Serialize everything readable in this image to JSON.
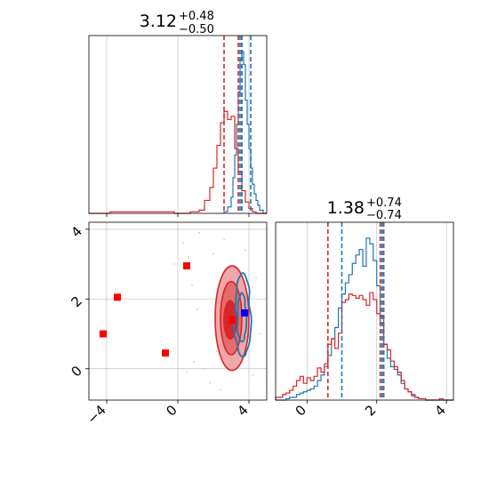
{
  "chart_data": {
    "type": "corner",
    "parameters": [
      {
        "title": {
          "value": "3.12",
          "plus": "+0.48",
          "minus": "−0.50"
        },
        "quantile_lines": {
          "red": [
            2.6,
            3.4,
            3.6
          ],
          "blue": [
            3.5,
            3.6,
            4.1
          ]
        },
        "hist_range": [
          -5.0,
          5.0
        ],
        "hist_red": {
          "edges": [
            -5.0,
            -3.8,
            -0.2,
            0.7,
            1.2,
            1.5,
            1.8,
            2.0,
            2.2,
            2.4,
            2.6,
            2.8,
            3.0,
            3.2,
            3.4,
            3.6,
            3.8,
            4.0,
            4.2,
            4.4,
            4.6,
            4.8,
            5.0
          ],
          "counts": [
            0,
            1,
            0,
            1,
            2,
            8,
            16,
            28,
            42,
            56,
            63,
            58,
            60,
            40,
            26,
            14,
            7,
            3,
            1,
            0,
            0,
            0
          ]
        },
        "hist_blue": {
          "edges": [
            2.6,
            2.8,
            3.0,
            3.1,
            3.2,
            3.3,
            3.4,
            3.5,
            3.6,
            3.7,
            3.8,
            3.9,
            4.0,
            4.1,
            4.2,
            4.3,
            4.4,
            4.5,
            4.6,
            4.8,
            5.0
          ],
          "counts": [
            1,
            4,
            10,
            22,
            36,
            55,
            75,
            95,
            100,
            92,
            70,
            55,
            40,
            28,
            18,
            12,
            8,
            5,
            2,
            0
          ]
        }
      },
      {
        "title": {
          "value": "1.38",
          "plus": "+0.74",
          "minus": "−0.74"
        },
        "quantile_lines": {
          "red": [
            0.6,
            2.1,
            2.2
          ],
          "blue": [
            1.0,
            2.15,
            2.2
          ]
        },
        "hist_range": [
          -0.9,
          4.2
        ],
        "hist_red": {
          "edges": [
            -0.9,
            -0.8,
            -0.7,
            -0.6,
            -0.5,
            -0.4,
            -0.3,
            -0.2,
            -0.1,
            0.0,
            0.1,
            0.2,
            0.3,
            0.4,
            0.5,
            0.6,
            0.7,
            0.8,
            0.9,
            1.0,
            1.1,
            1.2,
            1.3,
            1.4,
            1.5,
            1.6,
            1.7,
            1.8,
            1.9,
            2.0,
            2.1,
            2.2,
            2.3,
            2.4,
            2.5,
            2.6,
            2.7,
            2.8,
            2.9,
            3.0,
            3.1,
            3.2,
            3.3,
            3.4,
            3.5,
            3.6,
            3.7,
            3.8,
            3.9,
            4.0,
            4.2
          ],
          "counts": [
            2,
            2,
            4,
            5,
            7,
            10,
            14,
            17,
            12,
            16,
            14,
            17,
            23,
            20,
            26,
            40,
            44,
            37,
            48,
            70,
            72,
            76,
            75,
            73,
            75,
            72,
            68,
            77,
            72,
            62,
            55,
            40,
            36,
            28,
            24,
            20,
            14,
            8,
            6,
            3,
            2,
            1,
            1,
            0,
            0,
            0,
            0,
            1,
            0,
            0
          ]
        },
        "hist_blue": {
          "edges": [
            -0.9,
            -0.8,
            -0.7,
            -0.6,
            -0.5,
            -0.4,
            -0.3,
            -0.2,
            -0.1,
            0.0,
            0.1,
            0.2,
            0.3,
            0.4,
            0.5,
            0.6,
            0.7,
            0.8,
            0.9,
            1.0,
            1.1,
            1.2,
            1.3,
            1.4,
            1.5,
            1.6,
            1.7,
            1.8,
            1.9,
            2.0,
            2.1,
            2.2,
            2.3,
            2.4,
            2.5,
            2.6,
            2.7,
            2.8,
            2.9,
            3.0,
            3.1,
            3.2,
            3.3,
            3.4,
            3.5,
            3.6,
            3.7,
            3.8,
            3.9,
            4.0,
            4.2
          ],
          "counts": [
            0,
            0,
            0,
            1,
            2,
            2,
            4,
            5,
            6,
            7,
            8,
            10,
            14,
            18,
            24,
            32,
            44,
            52,
            66,
            76,
            84,
            90,
            98,
            104,
            108,
            96,
            116,
            112,
            100,
            82,
            60,
            40,
            30,
            24,
            22,
            18,
            12,
            8,
            6,
            4,
            2,
            1,
            1,
            0,
            0,
            0,
            0,
            0,
            0,
            0
          ]
        }
      }
    ],
    "joint": {
      "xlim": [
        -5.0,
        5.0
      ],
      "ylim": [
        -0.9,
        4.2
      ],
      "red_contours": [
        {
          "level": "outer",
          "cx": 3.05,
          "cy": 1.45,
          "rx": 0.95,
          "ry": 1.5
        },
        {
          "level": "middle",
          "cx": 3.0,
          "cy": 1.45,
          "rx": 0.6,
          "ry": 1.05
        },
        {
          "level": "inner",
          "cx": 2.95,
          "cy": 1.4,
          "rx": 0.35,
          "ry": 0.55
        }
      ],
      "blue_contours": [
        {
          "level": "outer",
          "cx": 3.65,
          "cy": 1.5,
          "rx": 0.45,
          "ry": 1.2
        },
        {
          "level": "inner",
          "cx": 3.6,
          "cy": 1.45,
          "rx": 0.25,
          "ry": 0.7
        }
      ],
      "red_squares": [
        {
          "x": -4.2,
          "y": 1.0
        },
        {
          "x": -3.4,
          "y": 2.05
        },
        {
          "x": -0.7,
          "y": 0.45
        },
        {
          "x": 0.5,
          "y": 2.95
        },
        {
          "x": 3.05,
          "y": 1.4
        }
      ],
      "blue_squares": [
        {
          "x": 3.75,
          "y": 1.6
        }
      ]
    },
    "ticks": {
      "x1": [
        -4,
        0,
        4
      ],
      "x1_labels": [
        "−4",
        "0",
        "4"
      ],
      "y1": [
        0,
        2,
        4
      ],
      "y1_labels": [
        "0",
        "2",
        "4"
      ],
      "x2": [
        0,
        2,
        4
      ],
      "x2_labels": [
        "0",
        "2",
        "4"
      ]
    },
    "colors": {
      "red": "#d62728",
      "blue": "#1f77b4",
      "red_fill_outer": "#f0a7a8",
      "red_fill_mid": "#e66b6c",
      "red_fill_inner": "#d62728",
      "marker_red": "#ff0000",
      "marker_blue": "#0000ff",
      "grid": "#c8c8c8"
    },
    "grid": true
  }
}
